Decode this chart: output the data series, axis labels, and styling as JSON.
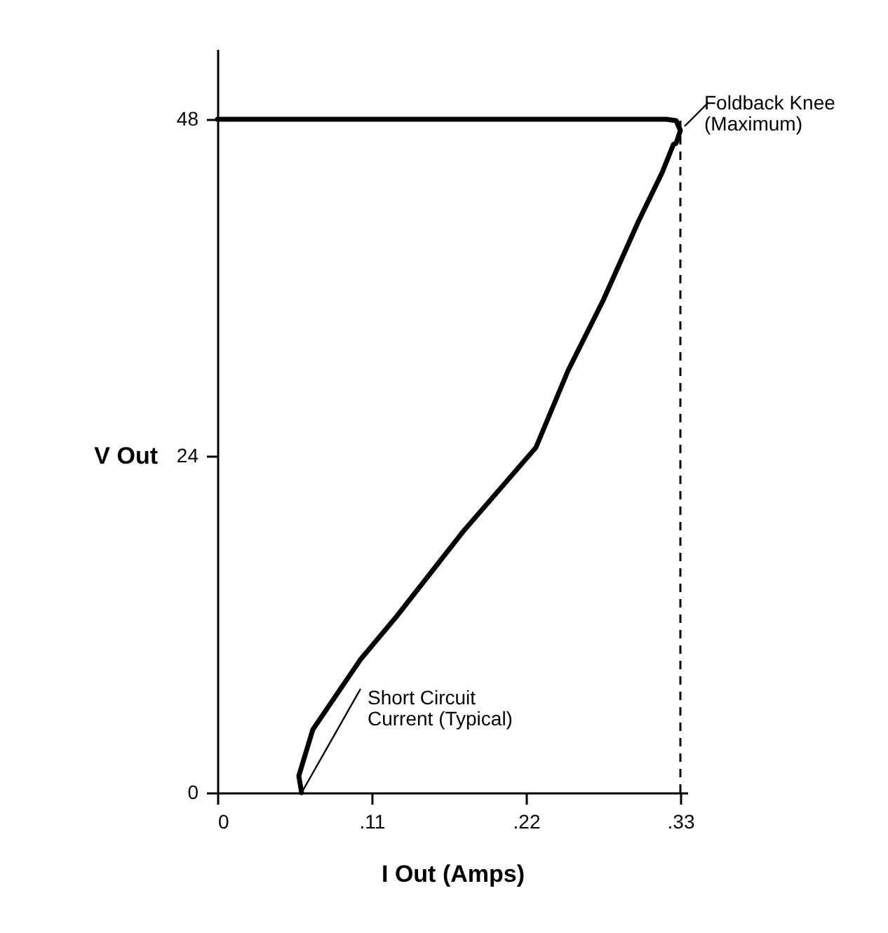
{
  "chart_data": {
    "type": "line",
    "xlabel": "I Out (Amps)",
    "ylabel": "V Out",
    "x": [
      0,
      0.2,
      0.32,
      0.327,
      0.33,
      0.327,
      0.325,
      0.317,
      0.3,
      0.275,
      0.25,
      0.227,
      0.175,
      0.128,
      0.102,
      0.068,
      0.058,
      0.06
    ],
    "series": [
      {
        "color": "#000000",
        "values": [
          48,
          48,
          48,
          47.9,
          47.2,
          46.3,
          46.2,
          44.2,
          40.7,
          35.1,
          30.1,
          24.6,
          18.6,
          12.6,
          9.5,
          4.5,
          1.2,
          0
        ]
      }
    ],
    "xlim": [
      0,
      0.335
    ],
    "ylim": [
      0,
      53
    ],
    "xticks": [
      0,
      {
        "value": 0.11,
        "label": ".11"
      },
      {
        "value": 0.22,
        "label": ".22"
      },
      {
        "value": 0.33,
        "label": ".33"
      }
    ],
    "yticks": [
      0,
      24,
      48
    ],
    "ref_lines": [
      {
        "axis": "x",
        "value": 0.33,
        "line_style": "dashed",
        "color": "#000000"
      }
    ],
    "annotations": [
      {
        "text": "Foldback Knee\n(Maximum)",
        "x": 0.333,
        "y": 47.5
      },
      {
        "text": "Short Circuit\nCurrent (Typical)",
        "x": 0.06,
        "y": 0
      }
    ],
    "grid": false,
    "marker": "none",
    "line_style": "solid"
  }
}
